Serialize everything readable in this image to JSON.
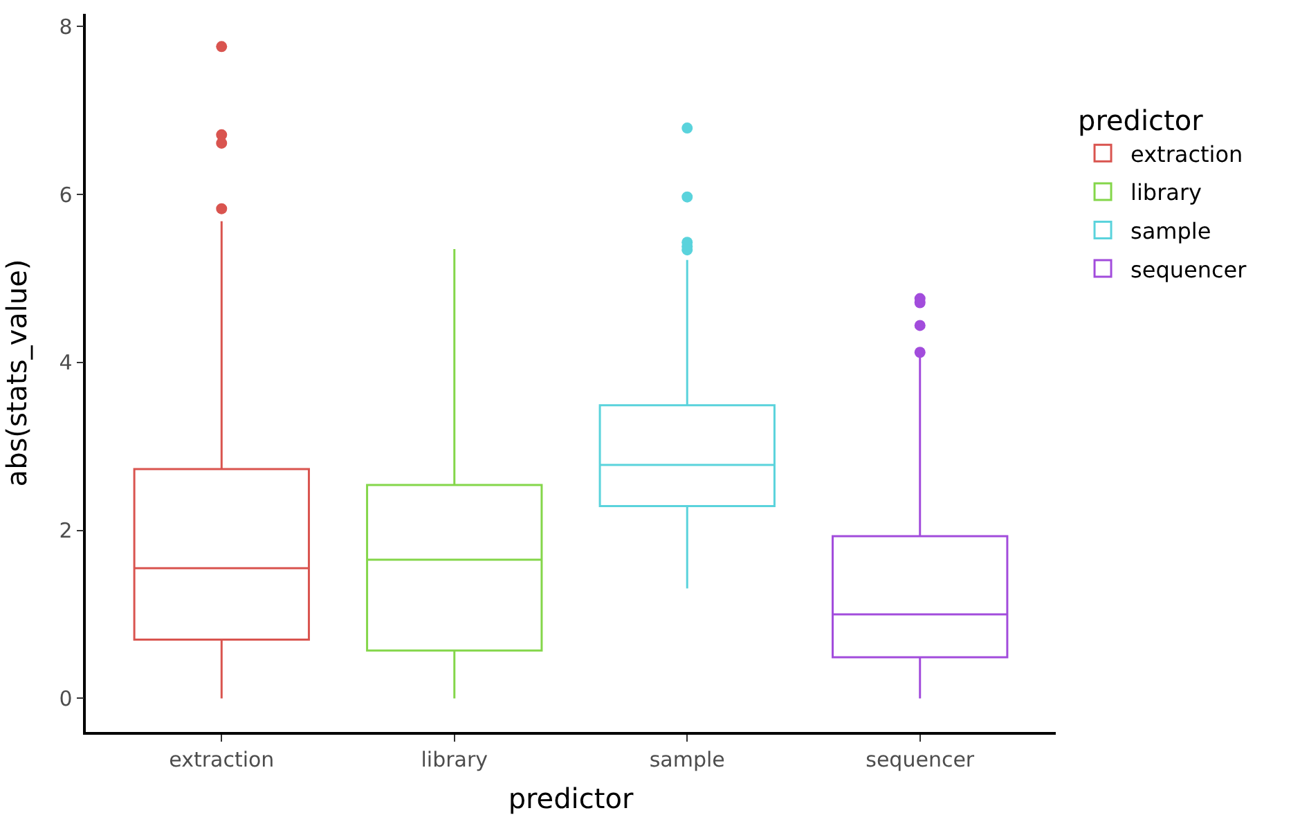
{
  "chart_data": {
    "type": "box",
    "xlabel": "predictor",
    "ylabel": "abs(stats_value)",
    "legend_title": "predictor",
    "legend": "right",
    "grid": false,
    "marker": "circle",
    "categories": [
      "extraction",
      "library",
      "sample",
      "sequencer"
    ],
    "ylim": [
      -0.4,
      8.15
    ],
    "yticks": [
      0,
      2,
      4,
      6,
      8
    ],
    "series": [
      {
        "name": "extraction",
        "color": "#d9544f",
        "boxes": [
          {
            "low": 0,
            "q1": 0.7,
            "median": 1.55,
            "q3": 2.73,
            "high": 5.68,
            "outliers": [
              7.76,
              6.71,
              6.61,
              5.83
            ]
          },
          null,
          null,
          null
        ]
      },
      {
        "name": "library",
        "color": "#84d64a",
        "boxes": [
          null,
          {
            "low": 0,
            "q1": 0.57,
            "median": 1.65,
            "q3": 2.54,
            "high": 5.35
          },
          null,
          null
        ]
      },
      {
        "name": "sample",
        "color": "#5ad3dc",
        "boxes": [
          null,
          null,
          {
            "low": 1.31,
            "q1": 2.29,
            "median": 2.78,
            "q3": 3.49,
            "high": 5.22,
            "outliers": [
              6.79,
              5.97,
              5.43,
              5.38,
              5.34
            ]
          },
          null
        ]
      },
      {
        "name": "sequencer",
        "color": "#a24cdc",
        "boxes": [
          null,
          null,
          null,
          {
            "low": 0,
            "q1": 0.49,
            "median": 1.0,
            "q3": 1.93,
            "high": 4.08,
            "outliers": [
              4.76,
              4.71,
              4.44,
              4.12
            ]
          }
        ]
      }
    ]
  }
}
